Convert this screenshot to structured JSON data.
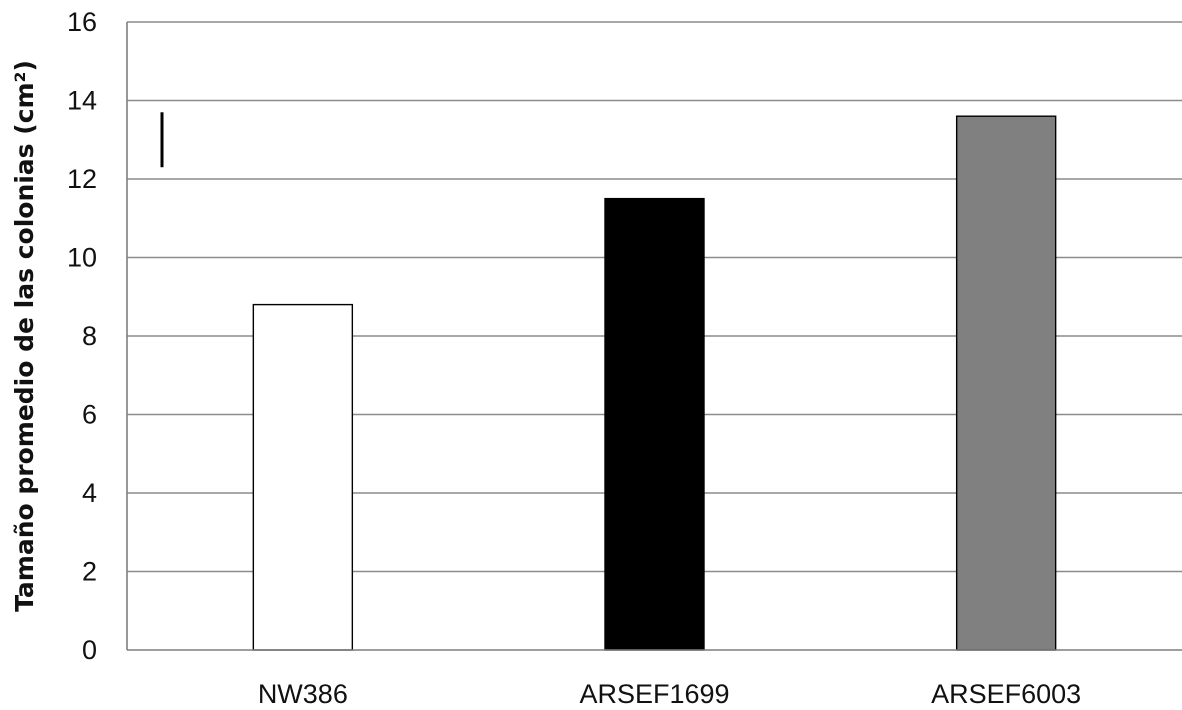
{
  "chart_data": {
    "type": "bar",
    "title": "",
    "xlabel": "",
    "ylabel": "Tamaño promedio de las colonias (cm²)",
    "categories": [
      "NW386",
      "ARSEF1699",
      "ARSEF6003"
    ],
    "values": [
      8.8,
      11.5,
      13.6
    ],
    "bar_colors": [
      "#ffffff",
      "#000000",
      "#808080"
    ],
    "ylim": [
      0,
      16
    ],
    "y_ticks": [
      0,
      2,
      4,
      6,
      8,
      10,
      12,
      14,
      16
    ],
    "grid": true,
    "legend": "none",
    "error_bar": {
      "y_low": 12.3,
      "y_high": 13.7
    }
  }
}
